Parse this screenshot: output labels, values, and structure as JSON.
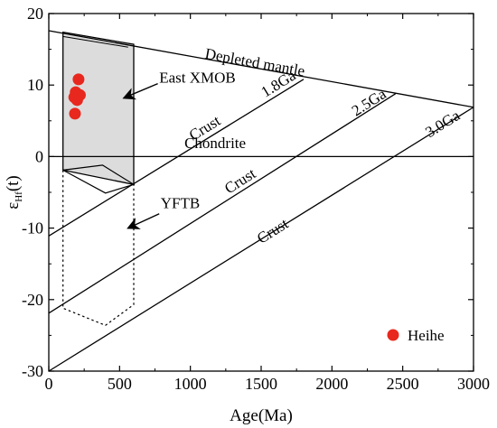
{
  "chart_data": {
    "type": "line",
    "xlabel": "Age(Ma)",
    "ylabel": {
      "main": "ε",
      "sub": "Hf",
      "tail": "(t)"
    },
    "xlim": [
      0,
      3000
    ],
    "ylim": [
      -30,
      20
    ],
    "x_ticks": [
      0,
      500,
      1000,
      1500,
      2000,
      2500,
      3000
    ],
    "x_tick_labels": [
      "0",
      "500",
      "1000",
      "1500",
      "2000",
      "2500",
      "3000"
    ],
    "y_ticks": [
      20,
      10,
      0,
      -10,
      -20,
      -30
    ],
    "y_tick_labels": [
      "20",
      "10",
      "0",
      "-10",
      "-20",
      "-30"
    ],
    "grid": false,
    "lines": [
      {
        "label": "Depleted mantle",
        "points": [
          [
            0,
            17.6
          ],
          [
            3000,
            6.9
          ]
        ]
      },
      {
        "label": "Chondrite",
        "points": [
          [
            0,
            0
          ],
          [
            3000,
            0
          ]
        ]
      },
      {
        "label": "1.8Ga",
        "points": [
          [
            0,
            -11.1
          ],
          [
            1800,
            10.8
          ]
        ]
      },
      {
        "label": "2.5Ga",
        "points": [
          [
            0,
            -21.9
          ],
          [
            2450,
            8.8
          ]
        ]
      },
      {
        "label": "3.0Ga",
        "points": [
          [
            0,
            -30
          ],
          [
            3000,
            6.9
          ]
        ]
      }
    ],
    "crust_labels": [
      "Crust",
      "Crust",
      "Crust"
    ],
    "regions": [
      {
        "label": "East XMOB",
        "fill": "#dcdcdc",
        "style": "solid",
        "polygon": [
          [
            100,
            17.4
          ],
          [
            600,
            15.7
          ],
          [
            600,
            -3.9
          ],
          [
            100,
            -1.9
          ]
        ]
      },
      {
        "label": "YFTB",
        "style": "solid",
        "polygon": [
          [
            100,
            -1.9
          ],
          [
            380,
            -1.2
          ],
          [
            600,
            -3.9
          ],
          [
            400,
            -5.1
          ],
          [
            100,
            -1.9
          ]
        ]
      },
      {
        "label": "YFTB",
        "style": "dotted",
        "polygon": [
          [
            100,
            -1.9
          ],
          [
            100,
            -21.2
          ],
          [
            400,
            -23.6
          ],
          [
            600,
            -20.7
          ],
          [
            600,
            -3.9
          ]
        ]
      }
    ],
    "samples": {
      "name": "Heihe",
      "color": "#e8281e",
      "points": [
        [
          210,
          10.8
        ],
        [
          190,
          9.0
        ],
        [
          220,
          8.6
        ],
        [
          180,
          8.3
        ],
        [
          200,
          7.9
        ],
        [
          185,
          6.0
        ]
      ]
    },
    "legend": {
      "position": "bottom-right",
      "label": "Heihe"
    },
    "annotations": [
      "East XMOB",
      "YFTB"
    ]
  }
}
